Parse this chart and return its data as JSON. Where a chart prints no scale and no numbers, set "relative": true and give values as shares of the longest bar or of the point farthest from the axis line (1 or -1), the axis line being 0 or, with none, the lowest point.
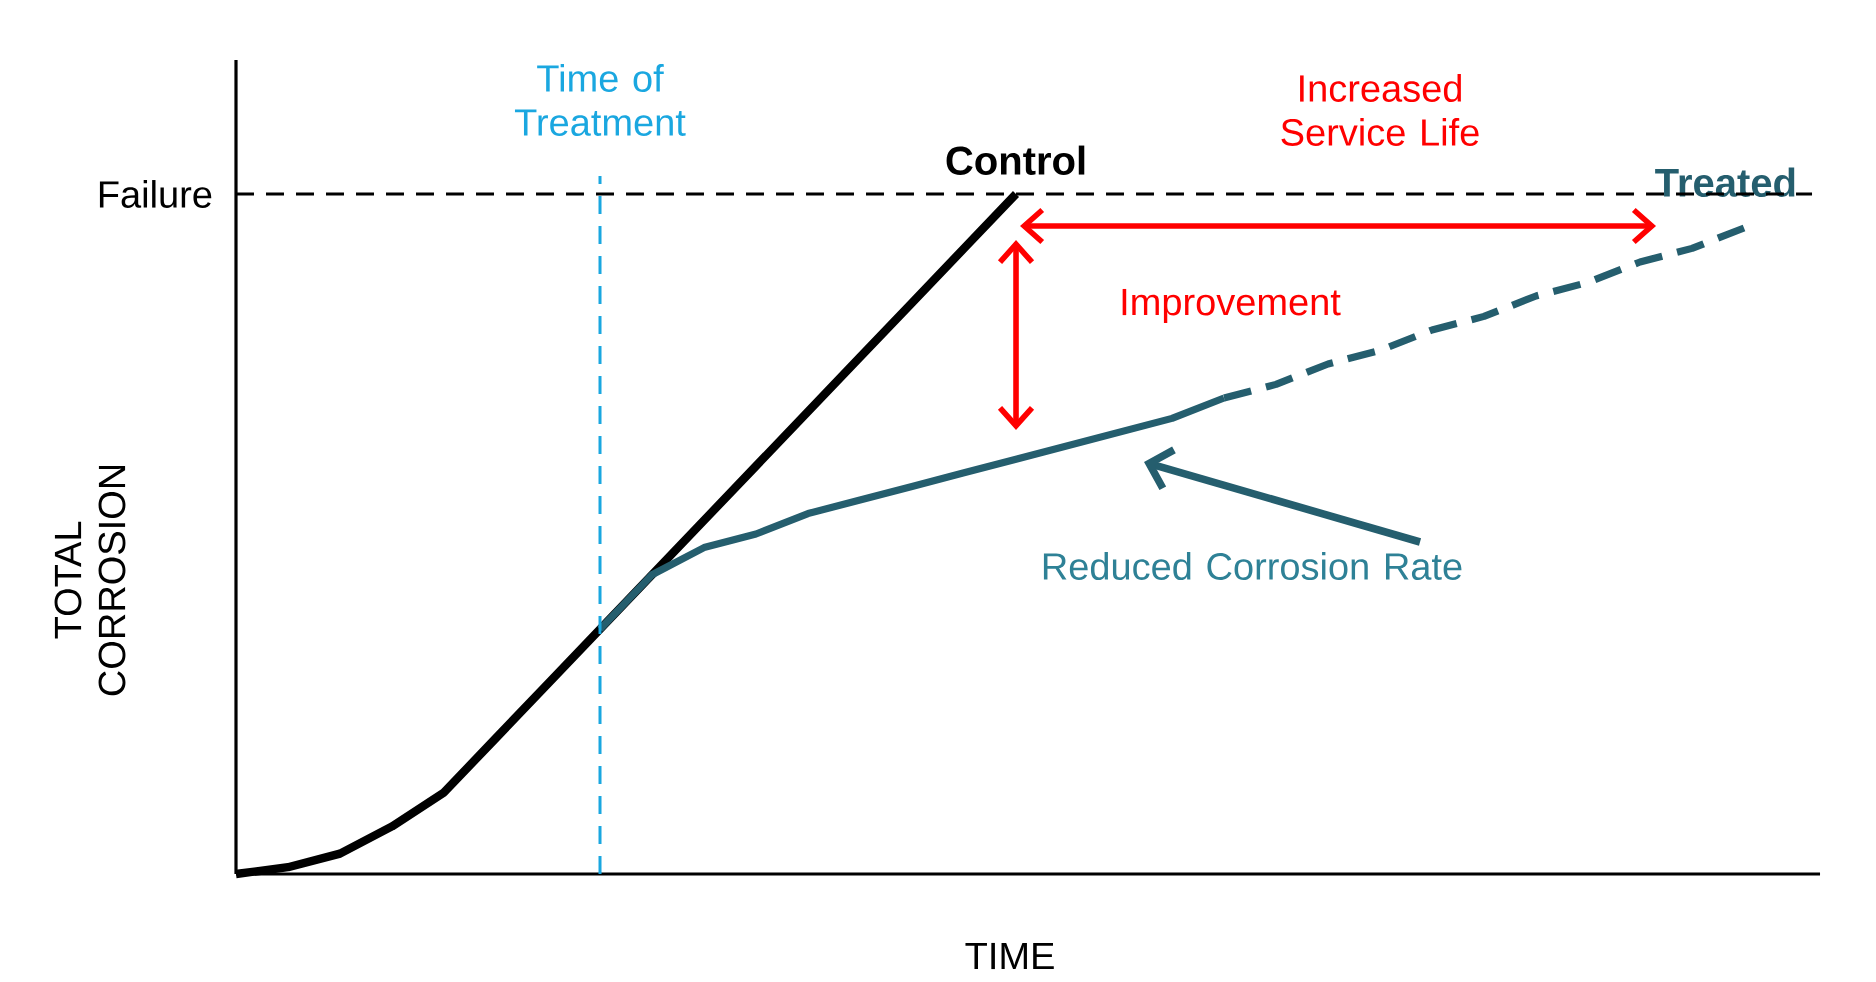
{
  "chart_data": {
    "type": "line",
    "relative": true,
    "xlabel": "TIME",
    "ylabel": "TOTAL CORROSION",
    "marker": "none",
    "categories": [
      null,
      null,
      null,
      null,
      null,
      null,
      null,
      null,
      null,
      null,
      null,
      null,
      null,
      null,
      null,
      null,
      null,
      null,
      null,
      null,
      null,
      null,
      null,
      null,
      null,
      null,
      null,
      null,
      null,
      null
    ],
    "series": [
      {
        "name": "Control",
        "color": "#000000",
        "line_style": "solid",
        "values": [
          0,
          0.01,
          0.03,
          0.07,
          0.12,
          0.2,
          0.28,
          0.36,
          0.44,
          0.52,
          0.6,
          0.68,
          0.76,
          0.84,
          0.92,
          1,
          null,
          null,
          null,
          null,
          null,
          null,
          null,
          null,
          null,
          null,
          null,
          null,
          null,
          null
        ]
      },
      {
        "color": "#255e6e",
        "line_style": "solid",
        "values": [
          null,
          null,
          null,
          null,
          null,
          null,
          null,
          0.36,
          0.44,
          0.48,
          0.5,
          0.53,
          0.55,
          0.57,
          0.59,
          0.61,
          0.63,
          0.65,
          0.67,
          0.7,
          null,
          null,
          null,
          null,
          null,
          null,
          null,
          null,
          null,
          null
        ]
      },
      {
        "name": "Treated",
        "color": "#255e6e",
        "line_style": "dashed",
        "values": [
          null,
          null,
          null,
          null,
          null,
          null,
          null,
          null,
          null,
          null,
          null,
          null,
          null,
          null,
          null,
          null,
          null,
          null,
          null,
          0.7,
          0.72,
          0.75,
          0.77,
          0.8,
          0.82,
          0.85,
          0.87,
          0.9,
          0.92,
          0.95
        ]
      }
    ],
    "ref_lines": [
      {
        "axis": "y",
        "value": 1,
        "label": "Failure",
        "color": "#000000",
        "line_style": "dashed"
      }
    ],
    "annotations": [
      "Increased Service Life",
      "Improvement",
      "Reduced Corrosion Rate",
      "Time of Treatment"
    ]
  }
}
